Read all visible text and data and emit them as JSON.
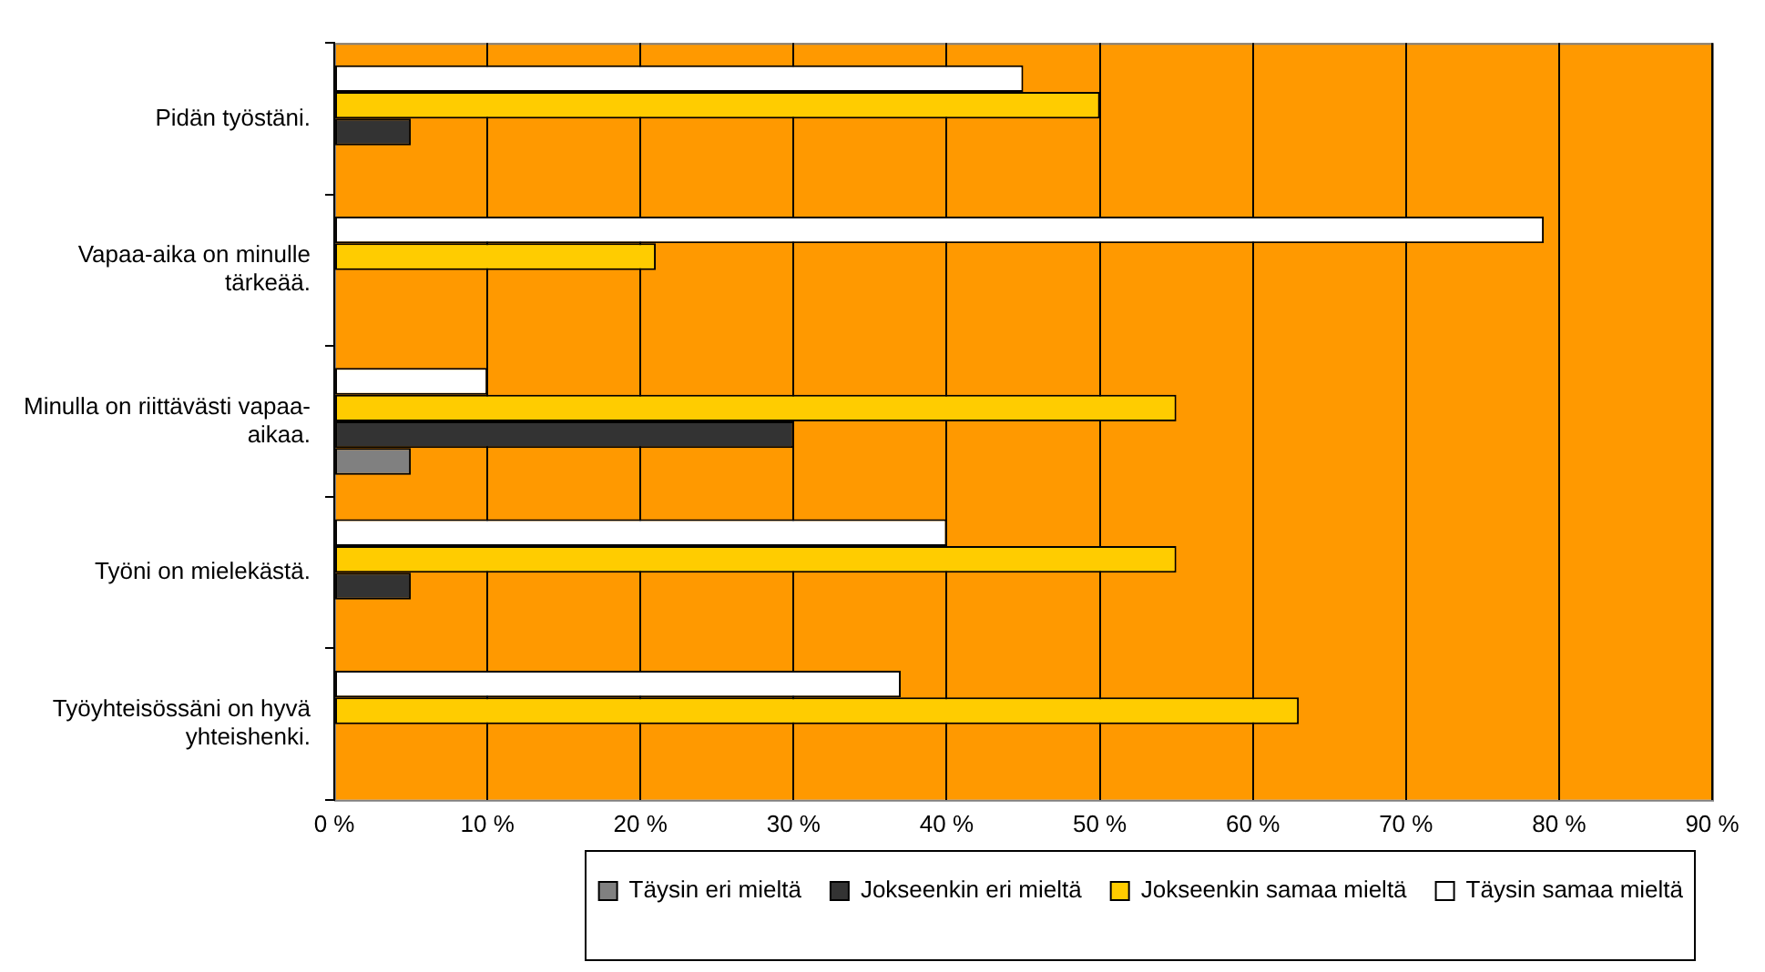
{
  "chart_data": {
    "type": "bar",
    "orientation": "horizontal",
    "categories": [
      "Pidän työstäni.",
      "Vapaa-aika on minulle tärkeää.",
      "Minulla on riittävästi vapaa-aikaa.",
      "Työni on mielekästä.",
      "Työyhteisössäni on hyvä yhteishenki."
    ],
    "series": [
      {
        "name": "Täysin eri mieltä",
        "color": "#808080",
        "values": [
          null,
          null,
          5,
          null,
          null
        ]
      },
      {
        "name": "Jokseenkin eri mieltä",
        "color": "#333333",
        "values": [
          5,
          null,
          30,
          5,
          null
        ]
      },
      {
        "name": "Jokseenkin samaa mieltä",
        "color": "#ffcc00",
        "values": [
          50,
          21,
          55,
          55,
          63
        ]
      },
      {
        "name": "Täysin samaa mieltä",
        "color": "#ffffff",
        "values": [
          45,
          79,
          10,
          40,
          37
        ]
      }
    ],
    "xlim": [
      0,
      90
    ],
    "xticks": [
      {
        "value": 0,
        "label": "0 %"
      },
      {
        "value": 10,
        "label": "10 %"
      },
      {
        "value": 20,
        "label": "20 %"
      },
      {
        "value": 30,
        "label": "30 %"
      },
      {
        "value": 40,
        "label": "40 %"
      },
      {
        "value": 50,
        "label": "50 %"
      },
      {
        "value": 60,
        "label": "60 %"
      },
      {
        "value": 70,
        "label": "70 %"
      },
      {
        "value": 80,
        "label": "80 %"
      },
      {
        "value": 90,
        "label": "90 %"
      }
    ],
    "grid": "x",
    "legend": "bottom"
  }
}
